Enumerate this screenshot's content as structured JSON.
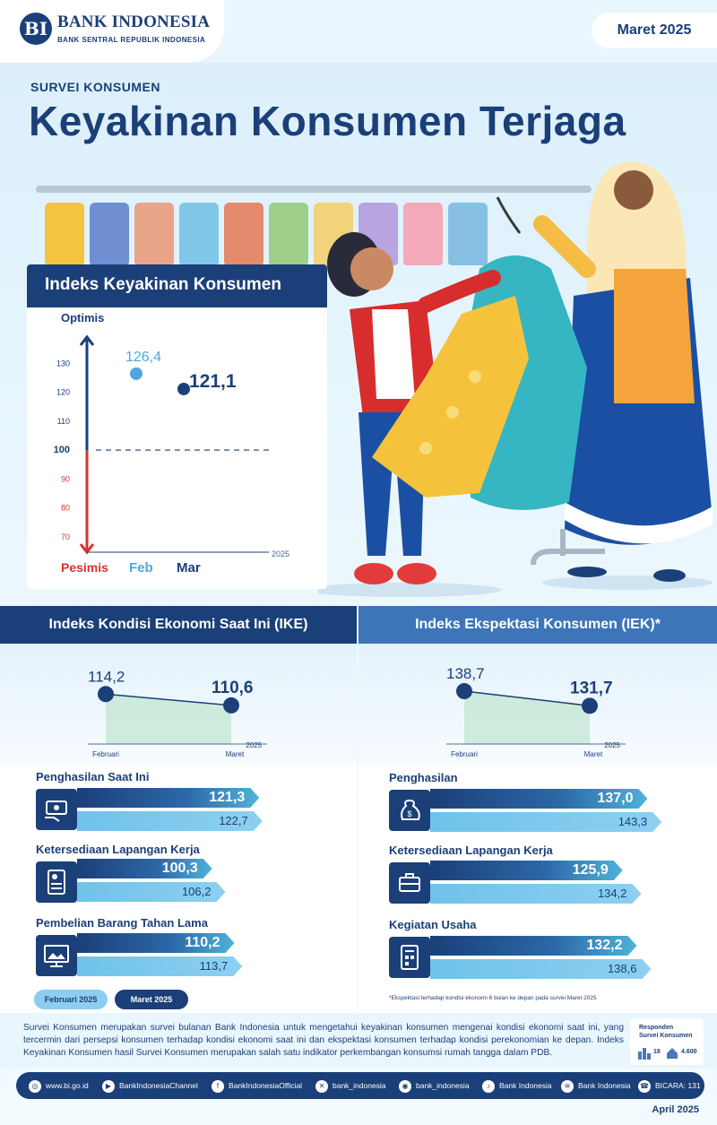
{
  "brand": {
    "logo_mark": "BI",
    "name": "BANK INDONESIA",
    "tagline": "BANK SENTRAL REPUBLIK INDONESIA"
  },
  "period": "Maret 2025",
  "survey_label": "SURVEI KONSUMEN",
  "headline": "Keyakinan Konsumen Terjaga",
  "ikk": {
    "title": "Indeks Keyakinan Konsumen",
    "top_label": "Optimis",
    "bottom_label": "Pesimis",
    "year": "2025"
  },
  "chart_data": [
    {
      "type": "scatter",
      "title": "Indeks Keyakinan Konsumen",
      "categories": [
        "Feb",
        "Mar"
      ],
      "values": [
        126.4,
        121.1
      ],
      "value_labels": [
        "126,4",
        "121,1"
      ],
      "y_ticks": [
        "70",
        "80",
        "90",
        "100",
        "110",
        "120",
        "130"
      ],
      "ylim": [
        65,
        140
      ],
      "reference_line": 100,
      "colors": [
        "#4fa6dc",
        "#1b3f78"
      ]
    },
    {
      "type": "line",
      "title": "Indeks Kondisi Ekonomi Saat Ini (IKE)",
      "categories": [
        "Februari",
        "Maret"
      ],
      "values": [
        114.2,
        110.6
      ],
      "value_labels": [
        "114,2",
        "110,6"
      ],
      "year": "2025"
    },
    {
      "type": "line",
      "title": "Indeks Ekspektasi Konsumen (IEK)*",
      "categories": [
        "Februari",
        "Maret"
      ],
      "values": [
        138.7,
        131.7
      ],
      "value_labels": [
        "138,7",
        "131,7"
      ],
      "year": "2025"
    },
    {
      "type": "bar",
      "title": "Indeks Kondisi Ekonomi Saat Ini (IKE)",
      "categories": [
        "Penghasilan Saat Ini",
        "Ketersediaan Lapangan Kerja",
        "Pembelian Barang Tahan Lama"
      ],
      "series": [
        {
          "name": "Maret 2025",
          "values": [
            121.3,
            100.3,
            110.2
          ],
          "labels": [
            "121,3",
            "100,3",
            "110,2"
          ]
        },
        {
          "name": "Februari 2025",
          "values": [
            122.7,
            106.2,
            113.7
          ],
          "labels": [
            "122,7",
            "106,2",
            "113,7"
          ]
        }
      ]
    },
    {
      "type": "bar",
      "title": "Indeks Ekspektasi Konsumen (IEK)*",
      "categories": [
        "Penghasilan",
        "Ketersediaan Lapangan Kerja",
        "Kegiatan Usaha"
      ],
      "series": [
        {
          "name": "Maret 2025",
          "values": [
            137.0,
            125.9,
            132.2
          ],
          "labels": [
            "137,0",
            "125,9",
            "132,2"
          ]
        },
        {
          "name": "Februari 2025",
          "values": [
            143.3,
            134.2,
            138.6
          ],
          "labels": [
            "143,3",
            "134,2",
            "138,6"
          ]
        }
      ]
    }
  ],
  "ike": {
    "title": "Indeks Kondisi Ekonomi Saat Ini (IKE)"
  },
  "iek": {
    "title": "Indeks Ekspektasi Konsumen (IEK)*"
  },
  "legend": {
    "feb": "Februari 2025",
    "mar": "Maret 2025"
  },
  "footnote": "*Ekspektasi terhadap kondisi ekonomi 6 bulan ke depan pada survei Maret 2025",
  "description": "Survei Konsumen merupakan survei bulanan Bank Indonesia untuk mengetahui keyakinan konsumen mengenai kondisi ekonomi saat ini, yang tercermin dari persepsi konsumen terhadap kondisi ekonomi saat ini dan ekspektasi konsumen terhadap kondisi perekonomian ke depan. Indeks Keyakinan Konsumen hasil Survei Konsumen merupakan salah satu indikator perkembangan konsumsi rumah tangga dalam PDB.",
  "respondents": {
    "title_line1": "Responden",
    "title_line2": "Survei Konsumen",
    "cities": "18",
    "households": "4.600"
  },
  "footer": {
    "website": "www.bi.go.id",
    "youtube": "BankIndonesiaChannel",
    "facebook": "BankIndonesiaOfficial",
    "x": "bank_indonesia",
    "instagram": "bank_indonesia",
    "tiktok": "Bank Indonesia",
    "spotify": "Bank Indonesia",
    "contact": "BICARA: 131"
  },
  "release_date": "April 2025",
  "colors": {
    "navy": "#1b3f78",
    "light_blue": "#4fa6dc",
    "red": "#d8332f",
    "sky": "#6fc2ea"
  }
}
